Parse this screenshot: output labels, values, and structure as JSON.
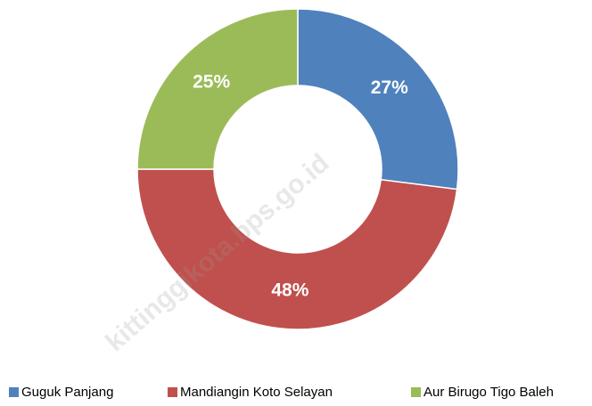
{
  "chart_data": {
    "type": "donut",
    "categories": [
      "Guguk Panjang",
      "Mandiangin Koto Selayan",
      "Aur Birugo Tigo Baleh"
    ],
    "values": [
      27,
      48,
      25
    ],
    "value_labels": [
      "27%",
      "48%",
      "25%"
    ],
    "colors": [
      "#4f81bd",
      "#c0504d",
      "#9bbb59"
    ],
    "legend": "bottom",
    "watermark": "kittinggikota.bps.go.id"
  }
}
